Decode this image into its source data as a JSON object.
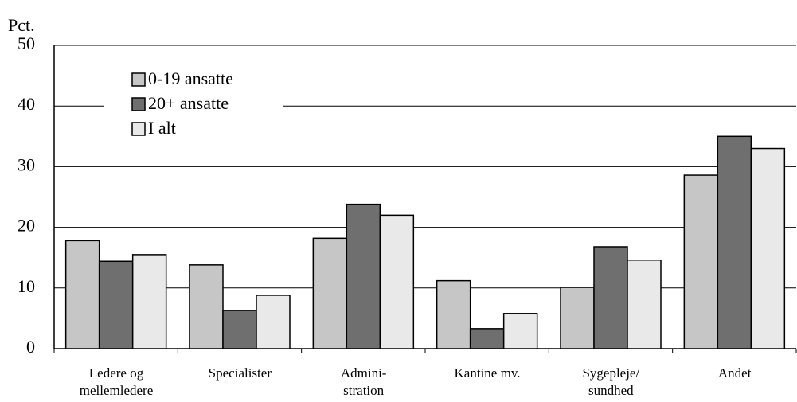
{
  "chart_data": {
    "type": "bar",
    "y_label": "Pct.",
    "categories": [
      "Ledere og\nmellemledere",
      "Specialister",
      "Admini-\nstration",
      "Kantine mv.",
      "Sygepleje/\nsundhed",
      "Andet"
    ],
    "series": [
      {
        "name": "0-19 ansatte",
        "color": "#c6c6c6",
        "values": [
          17.8,
          13.8,
          18.2,
          11.2,
          10.1,
          28.6
        ]
      },
      {
        "name": "20+ ansatte",
        "color": "#6f6f6f",
        "values": [
          14.4,
          6.3,
          23.8,
          3.3,
          16.8,
          35
        ]
      },
      {
        "name": "I alt",
        "color": "#e9e9e9",
        "values": [
          15.5,
          8.8,
          22,
          5.8,
          14.6,
          33
        ]
      }
    ],
    "ylim": [
      0,
      50
    ],
    "yticks": [
      0,
      10,
      20,
      30,
      40,
      50
    ],
    "grid": true,
    "legend": "upper left"
  }
}
